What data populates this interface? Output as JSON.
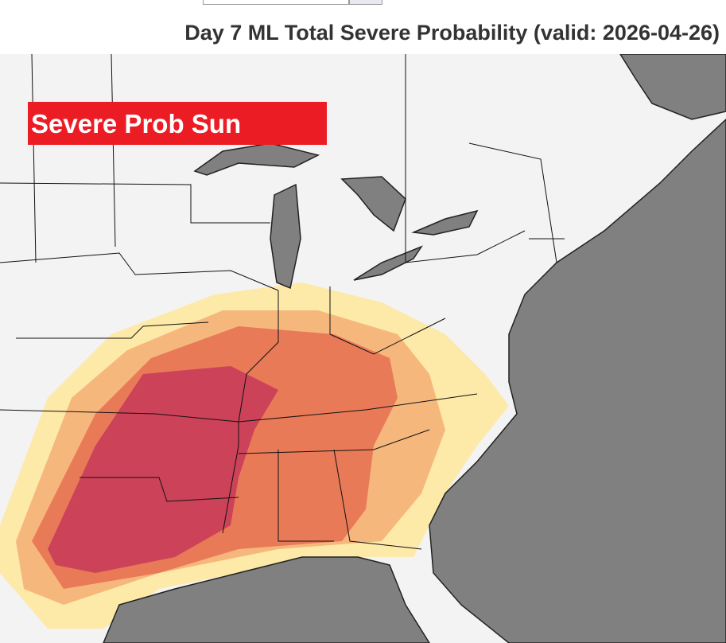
{
  "header": {
    "title": "Day 7 ML Total Severe Probability (valid: 2026-04-26)"
  },
  "map": {
    "label": "Severe Prob Sun"
  }
}
